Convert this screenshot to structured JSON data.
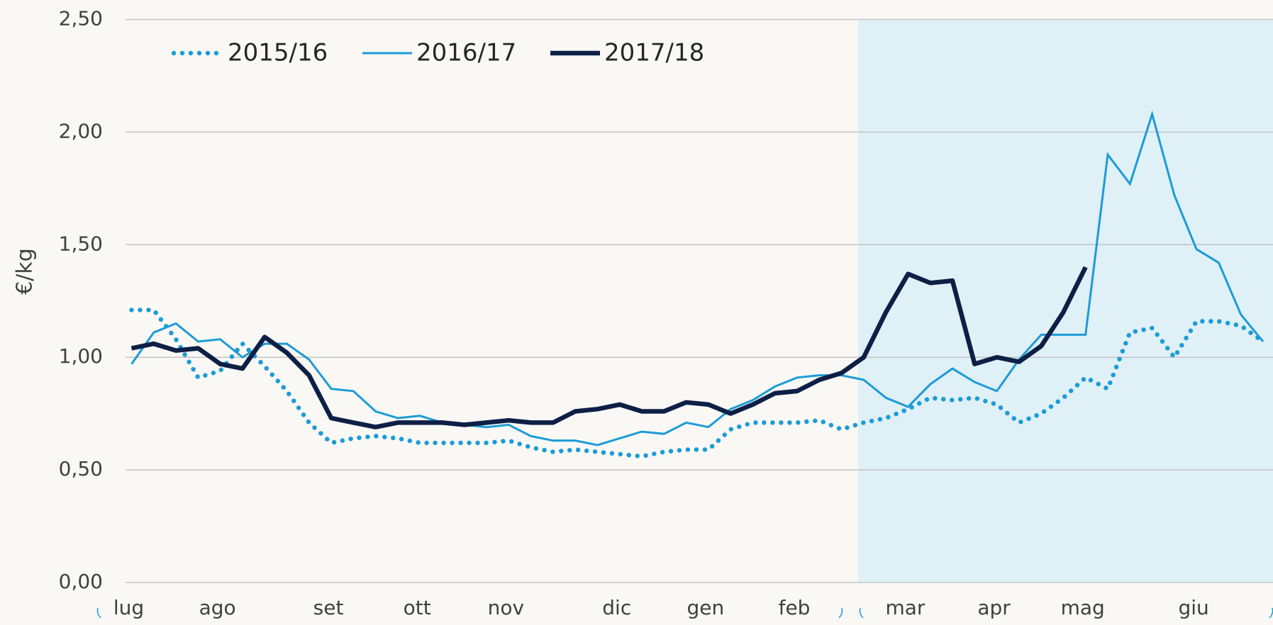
{
  "chart_data": {
    "type": "line",
    "y_label": "€/kg",
    "categories": [
      "lug",
      null,
      null,
      null,
      "ago",
      null,
      null,
      null,
      null,
      "set",
      null,
      null,
      null,
      "ott",
      null,
      null,
      null,
      "nov",
      null,
      null,
      null,
      null,
      "dic",
      null,
      null,
      null,
      "gen",
      null,
      null,
      null,
      "feb",
      null,
      null,
      null,
      null,
      "mar",
      null,
      null,
      null,
      "apr",
      null,
      null,
      null,
      "mag",
      null,
      null,
      null,
      null,
      "giu",
      null,
      null,
      null
    ],
    "series": [
      {
        "name": "2015/16",
        "color": "#1c9bd7",
        "style": "dotted",
        "values": [
          1.21,
          1.21,
          1.08,
          0.91,
          0.94,
          1.06,
          0.96,
          0.85,
          0.71,
          0.62,
          0.64,
          0.65,
          0.64,
          0.62,
          0.62,
          0.62,
          0.62,
          0.63,
          0.6,
          0.58,
          0.59,
          0.58,
          0.57,
          0.56,
          0.58,
          0.59,
          0.59,
          0.68,
          0.71,
          0.71,
          0.71,
          0.72,
          0.68,
          0.71,
          0.73,
          0.77,
          0.82,
          0.81,
          0.82,
          0.79,
          0.71,
          0.75,
          0.82,
          0.91,
          0.86,
          1.11,
          1.13,
          1.0,
          1.16,
          1.16,
          1.14,
          1.07
        ]
      },
      {
        "name": "2016/17",
        "color": "#1c9bd7",
        "style": "thin",
        "values": [
          0.97,
          1.11,
          1.15,
          1.07,
          1.08,
          1.0,
          1.06,
          1.06,
          0.99,
          0.86,
          0.85,
          0.76,
          0.73,
          0.74,
          0.71,
          0.7,
          0.69,
          0.7,
          0.65,
          0.63,
          0.63,
          0.61,
          0.64,
          0.67,
          0.66,
          0.71,
          0.69,
          0.77,
          0.81,
          0.87,
          0.91,
          0.92,
          0.92,
          0.9,
          0.82,
          0.78,
          0.88,
          0.95,
          0.89,
          0.85,
          0.99,
          1.1,
          1.1,
          1.1,
          1.9,
          1.77,
          2.08,
          1.72,
          1.48,
          1.42,
          1.19,
          1.07
        ]
      },
      {
        "name": "2017/18",
        "color": "#0d1f45",
        "style": "thick",
        "values": [
          1.04,
          1.06,
          1.03,
          1.04,
          0.97,
          0.95,
          1.09,
          1.02,
          0.92,
          0.73,
          0.71,
          0.69,
          0.71,
          0.71,
          0.71,
          0.7,
          0.71,
          0.72,
          0.71,
          0.71,
          0.76,
          0.77,
          0.79,
          0.76,
          0.76,
          0.8,
          0.79,
          0.75,
          0.79,
          0.84,
          0.85,
          0.9,
          0.93,
          1.0,
          1.2,
          1.37,
          1.33,
          1.34,
          0.97,
          1.0,
          0.98,
          1.05,
          1.2,
          1.4,
          null,
          null,
          null,
          null,
          null,
          null,
          null,
          null
        ]
      }
    ],
    "ylim": [
      0,
      2.5
    ],
    "yticks": [
      {
        "value": 0,
        "label": "0,00"
      },
      {
        "value": 0.5,
        "label": "0,50"
      },
      {
        "value": 1,
        "label": "1,00"
      },
      {
        "value": 1.5,
        "label": "1,50"
      },
      {
        "value": 2,
        "label": "2,00"
      },
      {
        "value": 2.5,
        "label": "2,50"
      }
    ],
    "grid": true
  }
}
